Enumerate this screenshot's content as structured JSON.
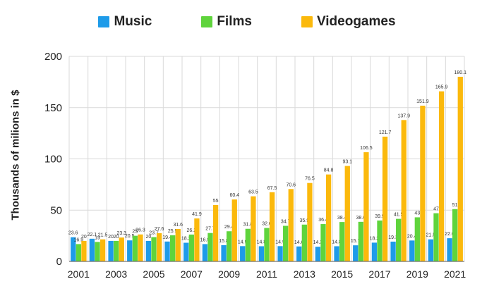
{
  "chart_data": {
    "type": "bar",
    "title": "",
    "xlabel": "",
    "ylabel": "Thousands of milions in $",
    "ylim": [
      0,
      200
    ],
    "yticks": [
      "0",
      "50",
      "100",
      "150",
      "200"
    ],
    "categories": [
      "2001",
      "2002",
      "2003",
      "2004",
      "2005",
      "2006",
      "2007",
      "2008",
      "2009",
      "2010",
      "2011",
      "2012",
      "2013",
      "2014",
      "2015",
      "2016",
      "2017",
      "2018",
      "2019",
      "2020",
      "2021"
    ],
    "xtick_labels": [
      "2001",
      "",
      "2003",
      "",
      "2005",
      "",
      "2007",
      "",
      "2009",
      "",
      "2011",
      "",
      "2013",
      "",
      "2015",
      "",
      "2017",
      "",
      "2019",
      "",
      "2021"
    ],
    "series": [
      {
        "name": "Music",
        "color": "#1e9be9",
        "values": [
          23.6,
          22.1,
          20,
          20.5,
          20,
          19.4,
          18.2,
          16.9,
          15.8,
          14.9,
          14.8,
          14.9,
          14.6,
          14.3,
          14.8,
          15.7,
          18.3,
          19.3,
          20.4,
          21.5,
          22.6
        ],
        "labels": [
          "23.6",
          "22.1",
          "20",
          "20.5",
          "20",
          "19.4",
          "18.2",
          "16.9",
          "15.8",
          "14.9",
          "14.8",
          "14.9",
          "14.6",
          "14.3",
          "14.8",
          "15.7",
          "18.3",
          "19.3",
          "20.4",
          "21.5",
          "22.6"
        ]
      },
      {
        "name": "Films",
        "color": "#5fd43c",
        "values": [
          16.9,
          19,
          20,
          25,
          23.7,
          25.5,
          26.2,
          27.7,
          29.4,
          31.8,
          32.6,
          34.7,
          35.9,
          36.4,
          38.4,
          38.6,
          39.9,
          41.5,
          43,
          47,
          51
        ],
        "labels": [
          "16.9",
          "19",
          "20",
          "25",
          "23.7",
          "25.5",
          "26.2",
          "27.7",
          "29.4",
          "31.8",
          "32.6",
          "34.7",
          "35.9",
          "36.4",
          "38.4",
          "38.6",
          "39.9",
          "41.5",
          "43",
          "47",
          "51"
        ]
      },
      {
        "name": "Videogames",
        "color": "#fbb90c",
        "values": [
          20,
          21.5,
          23.3,
          26.3,
          27.6,
          31.6,
          41.9,
          55,
          60.4,
          63.5,
          67.5,
          70.6,
          76.5,
          84.8,
          93.1,
          106.5,
          121.7,
          137.9,
          151.9,
          165.9,
          180.1
        ],
        "labels": [
          "20",
          "21.5",
          "23.3",
          "26.3",
          "27.6",
          "31.6",
          "41.9",
          "55",
          "60.4",
          "63.5",
          "67.5",
          "70.6",
          "76.5",
          "84.8",
          "93.1",
          "106.5",
          "121.7",
          "137.9",
          "151.9",
          "165.9",
          "180.1"
        ]
      }
    ],
    "grid": true,
    "legend_position": "top-center"
  }
}
